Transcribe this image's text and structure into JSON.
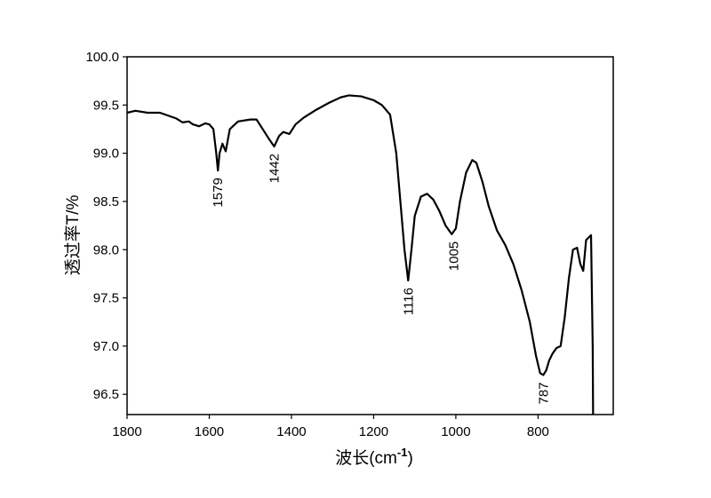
{
  "chart_data": {
    "type": "line",
    "x_label_parts": [
      "波长(cm",
      "-1",
      ")"
    ],
    "y_label": "透过率T/%",
    "xlim": [
      1800,
      617
    ],
    "ylim": [
      96.29,
      100
    ],
    "xticks": [
      1800,
      1600,
      1400,
      1200,
      1000,
      800
    ],
    "yticks": [
      96.5,
      {
        "value": 97,
        "label": "97.0"
      },
      97.5,
      {
        "value": 98,
        "label": "98.0"
      },
      98.5,
      {
        "value": 99,
        "label": "99.0"
      },
      99.5,
      {
        "value": 100,
        "label": "100.0"
      }
    ],
    "series": [
      {
        "color": "#000000",
        "x": [
          1800,
          1780,
          1750,
          1720,
          1700,
          1680,
          1665,
          1650,
          1640,
          1625,
          1610,
          1600,
          1590,
          1583,
          1579,
          1575,
          1568,
          1560,
          1550,
          1530,
          1500,
          1485,
          1470,
          1455,
          1442,
          1430,
          1420,
          1405,
          1390,
          1370,
          1340,
          1310,
          1280,
          1260,
          1230,
          1200,
          1180,
          1160,
          1145,
          1135,
          1125,
          1116,
          1108,
          1100,
          1085,
          1070,
          1055,
          1040,
          1025,
          1010,
          1000,
          990,
          975,
          960,
          950,
          935,
          920,
          900,
          880,
          860,
          840,
          820,
          805,
          795,
          787,
          780,
          773,
          765,
          755,
          745,
          735,
          725,
          715,
          705,
          697,
          690,
          683,
          671,
          667,
          666
        ],
        "values": [
          99.42,
          99.44,
          99.42,
          99.42,
          99.39,
          99.36,
          99.32,
          99.33,
          99.3,
          99.28,
          99.31,
          99.3,
          99.25,
          99.0,
          98.82,
          99.0,
          99.1,
          99.02,
          99.25,
          99.33,
          99.35,
          99.35,
          99.25,
          99.15,
          99.07,
          99.18,
          99.22,
          99.2,
          99.3,
          99.37,
          99.45,
          99.52,
          99.58,
          99.6,
          99.59,
          99.55,
          99.5,
          99.4,
          99.0,
          98.5,
          98.0,
          97.68,
          98.0,
          98.35,
          98.55,
          98.58,
          98.52,
          98.4,
          98.25,
          98.16,
          98.22,
          98.5,
          98.8,
          98.93,
          98.9,
          98.7,
          98.45,
          98.2,
          98.05,
          97.85,
          97.58,
          97.25,
          96.9,
          96.72,
          96.7,
          96.75,
          96.85,
          96.92,
          96.98,
          97.0,
          97.3,
          97.7,
          98.0,
          98.02,
          97.85,
          97.78,
          98.1,
          98.15,
          97.0,
          96.29
        ]
      }
    ],
    "annotations": [
      {
        "text": "1579",
        "x": 1579,
        "y": 98.82
      },
      {
        "text": "1442",
        "x": 1442,
        "y": 99.07
      },
      {
        "text": "1116",
        "x": 1116,
        "y": 97.68
      },
      {
        "text": "1005",
        "x": 1005,
        "y": 98.16
      },
      {
        "text": "787",
        "x": 787,
        "y": 96.7
      }
    ]
  }
}
